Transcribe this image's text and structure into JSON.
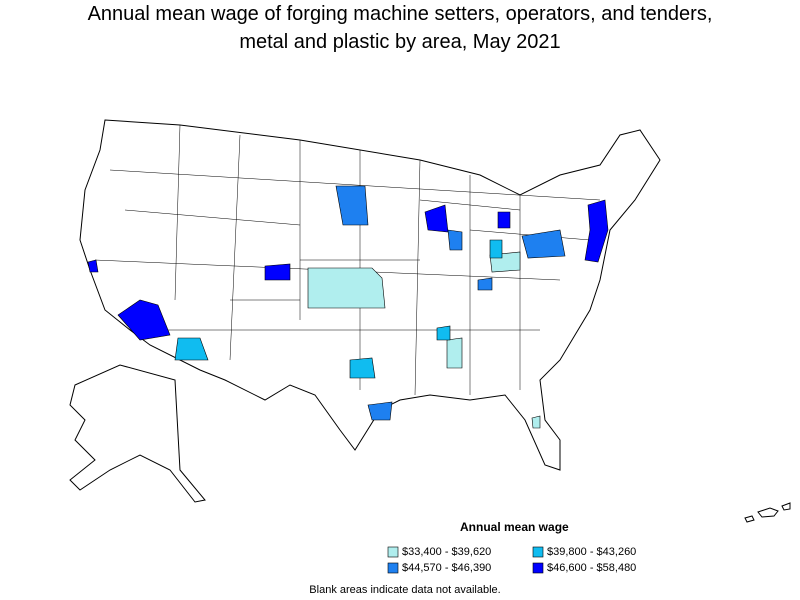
{
  "title_lines": [
    "Annual mean wage of forging machine setters, operators, and tenders,",
    "metal and plastic by area, May 2021"
  ],
  "legend": {
    "title": "Annual mean wage",
    "items": [
      {
        "label": "$33,400 - $39,620",
        "color": "#b0eeee"
      },
      {
        "label": "$39,800 - $43,260",
        "color": "#10bcf0"
      },
      {
        "label": "$44,570 - $46,390",
        "color": "#1e80f0"
      },
      {
        "label": "$46,600 - $58,480",
        "color": "#0000ff"
      }
    ]
  },
  "footnote": "Blank areas indicate data not available."
}
